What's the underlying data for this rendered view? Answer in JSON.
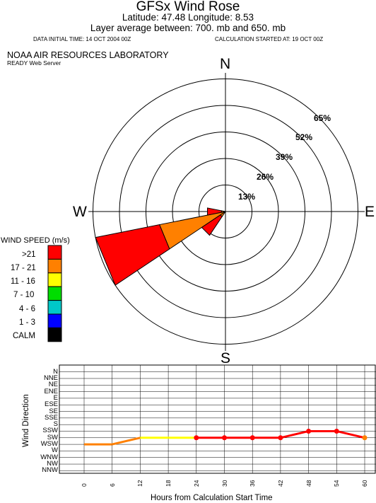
{
  "header": {
    "title": "GFSx Wind Rose",
    "location_line": "Latitude: 47.48 Longitude:   8.53",
    "layer_line": "Layer average between:  700. mb  and  650. mb",
    "data_initial_time": "DATA INITIAL TIME: 14 OCT 2004 00Z",
    "calc_started": "CALCULATION STARTED AT: 19 OCT 00Z",
    "org": "NOAA AIR RESOURCES LABORATORY",
    "server": "READY Web Server"
  },
  "colors": {
    "gt21": "#ff0000",
    "s17_21": "#ff8000",
    "s11_16": "#ffff00",
    "s7_10": "#00dd00",
    "s4_6": "#00c8c8",
    "s1_3": "#0000ff",
    "calm": "#000000"
  },
  "chart_data": [
    {
      "type": "wind_rose",
      "compass": [
        "N",
        "E",
        "S",
        "W"
      ],
      "ring_labels": [
        "13%",
        "26%",
        "39%",
        "52%",
        "65%"
      ],
      "ring_values": [
        13,
        26,
        39,
        52,
        65
      ],
      "legend_title": "WIND SPEED (m/s)",
      "speed_classes": [
        "CALM",
        "1 - 3",
        "4 - 6",
        "7 - 10",
        "11 - 16",
        "17 - 21",
        ">21"
      ],
      "legend_order": [
        ">21",
        "17 - 21",
        "11 - 16",
        "7 - 10",
        "4 - 6",
        "1 - 3",
        "CALM"
      ],
      "petals": [
        {
          "direction": "WSW",
          "bearing": 247.5,
          "segments": [
            {
              "speed": "17 - 21",
              "percent": 33
            },
            {
              "speed": ">21",
              "percent": 32
            }
          ]
        },
        {
          "direction": "W",
          "bearing": 270,
          "segments": [
            {
              "speed": "17 - 21",
              "percent": 2
            },
            {
              "speed": ">21",
              "percent": 7
            }
          ]
        },
        {
          "direction": "SW",
          "bearing": 225,
          "segments": [
            {
              "speed": "17 - 21",
              "percent": 3
            },
            {
              "speed": ">21",
              "percent": 11
            }
          ]
        }
      ]
    },
    {
      "type": "line",
      "xlabel": "Hours from Calculation Start Time",
      "ylabel": "Wind Direction",
      "x": [
        0,
        6,
        12,
        18,
        24,
        30,
        36,
        42,
        48,
        54,
        60
      ],
      "y_categories": [
        "N",
        "NNE",
        "NE",
        "ENE",
        "E",
        "ESE",
        "SE",
        "SSE",
        "S",
        "SSW",
        "SW",
        "WSW",
        "W",
        "WNW",
        "NW",
        "NNW"
      ],
      "points": [
        {
          "x": 0,
          "dir": "WSW",
          "speed": "17 - 21"
        },
        {
          "x": 6,
          "dir": "WSW",
          "speed": "17 - 21"
        },
        {
          "x": 12,
          "dir": "SW",
          "speed": "11 - 16"
        },
        {
          "x": 18,
          "dir": "SW",
          "speed": "11 - 16"
        },
        {
          "x": 24,
          "dir": "SW",
          "speed": ">21"
        },
        {
          "x": 30,
          "dir": "SW",
          "speed": ">21"
        },
        {
          "x": 36,
          "dir": "SW",
          "speed": ">21"
        },
        {
          "x": 42,
          "dir": "SW",
          "speed": ">21"
        },
        {
          "x": 48,
          "dir": "SSW",
          "speed": ">21"
        },
        {
          "x": 54,
          "dir": "SSW",
          "speed": ">21"
        },
        {
          "x": 60,
          "dir": "SW",
          "speed": "17 - 21"
        }
      ]
    }
  ]
}
